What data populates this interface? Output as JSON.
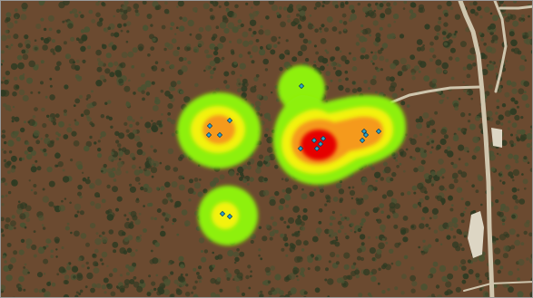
{
  "map": {
    "basemap": "aerial-forest",
    "colors": {
      "ground": "#6b4a30",
      "tree_dark": "#2e3a22",
      "tree_mid": "#4a5232",
      "road": "#cfc5ad",
      "clearing": "#ddd6c4"
    },
    "heat_colors": [
      "#8ef00a",
      "#f2f20e",
      "#f59a1e",
      "#e60000"
    ],
    "point_style": {
      "fill": "#2ea8c8",
      "stroke": "#0d3d5c",
      "symbol": "diamond"
    }
  }
}
